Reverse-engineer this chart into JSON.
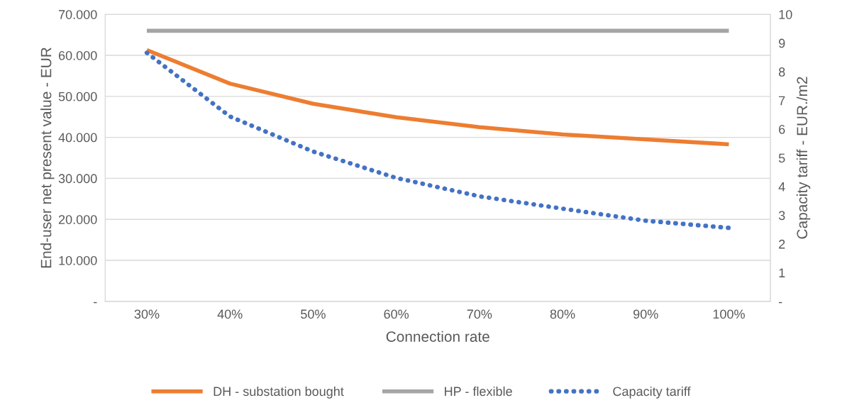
{
  "chart_data": {
    "type": "line",
    "xlabel": "Connection rate",
    "ylabel": "End-user net present value - EUR",
    "y2label": "Capacity tariff - EUR./m2",
    "categories": [
      "30%",
      "40%",
      "50%",
      "60%",
      "70%",
      "80%",
      "90%",
      "100%"
    ],
    "series": [
      {
        "name": "DH - substation bought",
        "color": "#ed7d31",
        "line_style": "solid",
        "values": [
          61300,
          53100,
          48200,
          44900,
          42500,
          40700,
          39500,
          38300
        ]
      },
      {
        "name": "HP - flexible",
        "color": "#a5a5a5",
        "line_style": "solid",
        "values": [
          66000,
          66000,
          66000,
          66000,
          66000,
          66000,
          66000,
          66000
        ]
      },
      {
        "name": "Capacity tariff",
        "color": "#4472c4",
        "line_style": "dotted",
        "axis": "y2",
        "values": [
          8.66,
          6.44,
          5.22,
          4.3,
          3.66,
          3.23,
          2.81,
          2.56
        ]
      }
    ],
    "ylim": [
      0,
      70000
    ],
    "yticks": [
      {
        "value": 0,
        "label": "-"
      },
      {
        "value": 10000,
        "label": "10.000"
      },
      {
        "value": 20000,
        "label": "20.000"
      },
      {
        "value": 30000,
        "label": "30.000"
      },
      {
        "value": 40000,
        "label": "40.000"
      },
      {
        "value": 50000,
        "label": "50.000"
      },
      {
        "value": 60000,
        "label": "60.000"
      },
      {
        "value": 70000,
        "label": "70.000"
      }
    ],
    "y2lim": [
      0,
      10
    ],
    "y2ticks": [
      {
        "value": 0,
        "label": "-"
      },
      1,
      2,
      3,
      4,
      5,
      6,
      7,
      8,
      9,
      10
    ],
    "grid": "y",
    "legend": "bottom",
    "marker": "none"
  }
}
